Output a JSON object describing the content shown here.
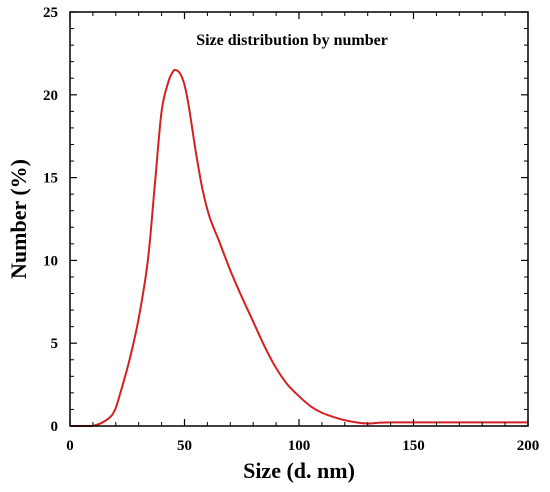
{
  "chart_data": {
    "type": "line",
    "title": "Size distribution by number",
    "xlabel": "Size (d. nm)",
    "ylabel": "Number (%)",
    "xlim": [
      0,
      200
    ],
    "ylim": [
      0,
      25
    ],
    "x_ticks": [
      "0",
      "50",
      "100",
      "150",
      "200"
    ],
    "y_ticks": [
      "0",
      "5",
      "10",
      "15",
      "20",
      "25"
    ],
    "grid": false,
    "legend": "none",
    "series": [
      {
        "color": "#d42020",
        "x": [
          10,
          14,
          18,
          20,
          22,
          26,
          30,
          34,
          37,
          40,
          43,
          45,
          46,
          48,
          50,
          52,
          55,
          58,
          61,
          65,
          70,
          75,
          80,
          85,
          90,
          95,
          100,
          105,
          110,
          115,
          120,
          125,
          130,
          135,
          140,
          150,
          160,
          170,
          180,
          190,
          200
        ],
        "y": [
          0,
          0.2,
          0.6,
          1.1,
          2.0,
          4.0,
          6.5,
          10.0,
          14.5,
          19.0,
          20.8,
          21.4,
          21.5,
          21.3,
          20.6,
          19.2,
          16.5,
          14.2,
          12.6,
          11.2,
          9.4,
          7.8,
          6.3,
          4.8,
          3.5,
          2.5,
          1.8,
          1.2,
          0.8,
          0.55,
          0.35,
          0.22,
          0.15,
          0.2,
          0.22,
          0.22,
          0.22,
          0.22,
          0.22,
          0.22,
          0.22
        ]
      }
    ]
  }
}
